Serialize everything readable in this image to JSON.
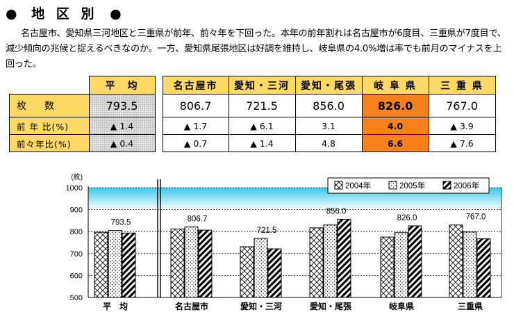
{
  "header": {
    "title_chars": [
      "地",
      "区",
      "別"
    ],
    "bullet": "●"
  },
  "paragraph": "名古屋市、愛知県三河地区と三重県が前年、前々年を下回った。本年の前年割れは名古屋市が6度目、三重県が7度目で、減少傾向の兆候と捉えるべきなのか。一方、愛知県尾張地区は好調を維持し、岐阜県の4.0%増は率でも前月のマイナスを上回った。",
  "table": {
    "columns": [
      "平　均",
      "名古屋市",
      "愛知・三河",
      "愛知・尾張",
      "岐 阜 県",
      "三 重 県"
    ],
    "rows": [
      {
        "label": "枚　数",
        "values": [
          "793.5",
          "806.7",
          "721.5",
          "856.0",
          "826.0",
          "767.0"
        ]
      },
      {
        "label": "前 年 比(%)",
        "values": [
          "▲ 1.4",
          "▲ 1.7",
          "▲ 6.1",
          "3.1",
          "4.0",
          "▲ 3.9"
        ]
      },
      {
        "label": "前々年比(%)",
        "values": [
          "▲ 0.4",
          "▲ 0.7",
          "▲ 1.4",
          "4.8",
          "6.6",
          "▲ 7.6"
        ]
      }
    ],
    "highlight_column": 4
  },
  "chart_data": {
    "type": "bar",
    "yunit": "(枚)",
    "ylim": [
      500,
      1000
    ],
    "yticks": [
      "500",
      "600",
      "700",
      "800",
      "900",
      "1000"
    ],
    "categories": [
      "平　均",
      "名古屋市",
      "愛知・三河",
      "愛知・尾張",
      "岐阜県",
      "三重県"
    ],
    "series": [
      {
        "name": "2004年",
        "values": [
          797,
          812,
          731,
          817,
          775,
          830
        ]
      },
      {
        "name": "2005年",
        "values": [
          805,
          821,
          769,
          830,
          795,
          798
        ]
      },
      {
        "name": "2006年",
        "values": [
          793.5,
          806.7,
          721.5,
          856.0,
          826.0,
          767.0
        ]
      }
    ],
    "data_labels": [
      "793.5",
      "806.7",
      "721.5",
      "856.0",
      "826.0",
      "767.0"
    ],
    "legend_placement": "top-right",
    "gradient_band": {
      "from": 900,
      "to": 1000,
      "color_top": "#39c6e6",
      "color_bottom": "#ffffff"
    },
    "grid": true
  }
}
